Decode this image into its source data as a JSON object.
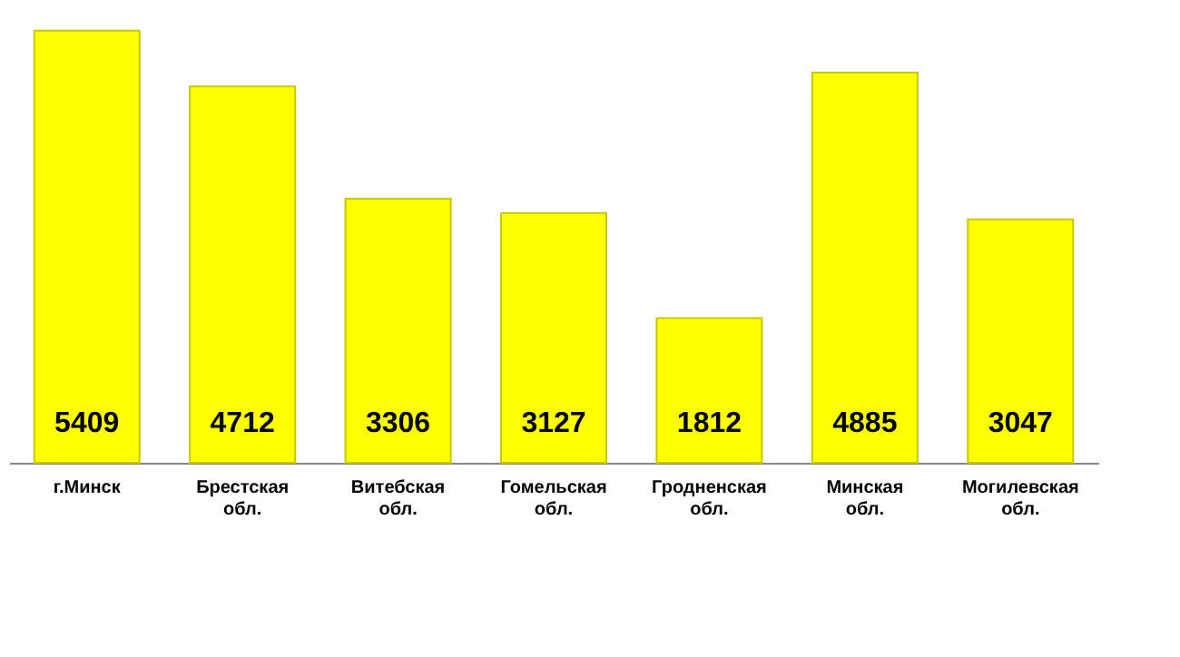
{
  "chart_data": {
    "type": "bar",
    "categories": [
      "г.Минск",
      "Брестская обл.",
      "Витебская обл.",
      "Гомельская обл.",
      "Гродненская обл.",
      "Минская обл.",
      "Могилевская обл."
    ],
    "values": [
      5409,
      4712,
      3306,
      3127,
      1812,
      4885,
      3047
    ],
    "color": "#ffff00",
    "data_labels": true,
    "grid": false
  }
}
